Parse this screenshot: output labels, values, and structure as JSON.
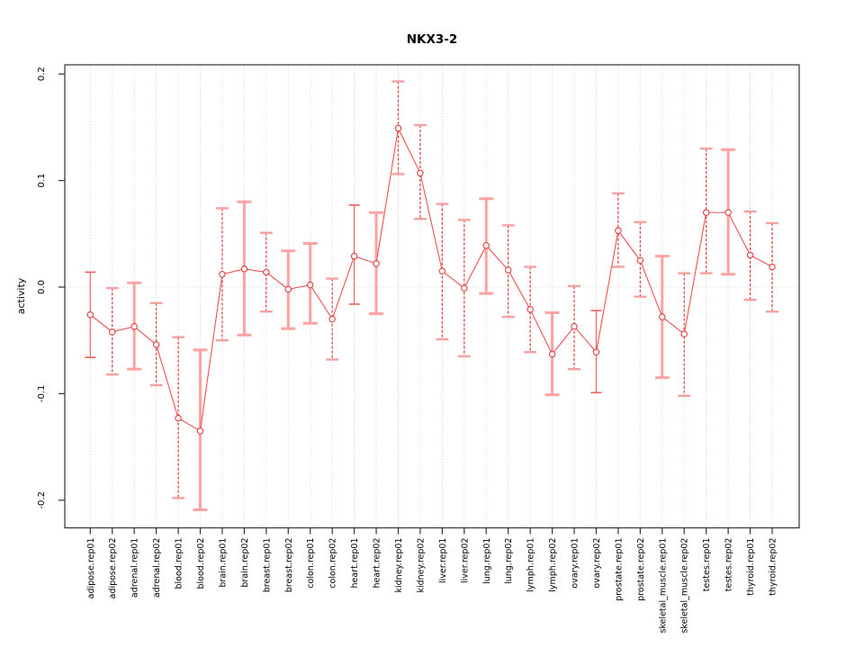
{
  "page": {
    "background": "#ffffff"
  },
  "chart_data": {
    "type": "line",
    "title": "NKX3-2",
    "xlabel": "",
    "ylabel": "activity",
    "ylim": [
      -0.226,
      0.209
    ],
    "yticks": [
      0.2,
      0.1,
      0.0,
      -0.1,
      -0.2
    ],
    "ytick_labels": [
      "0.2",
      "0.1",
      "0.0",
      "-0.1",
      "-0.2"
    ],
    "grid": "vertical dotted gridline at every category plus dotted horizontal line at 0.0",
    "legend": "none",
    "marker": "open-circle",
    "error_bars": true,
    "colors": {
      "line": "#f05050",
      "marker": "#e04040",
      "bar_solid": "#f26060",
      "bar_dashed": "#e03838",
      "bar_thick": "#ffa2a2",
      "bar_cap_light": "#f7a0a0",
      "grid": "#d8d8d8",
      "zero_line": "#dcdcdc",
      "box": "#333333",
      "text": "#000000"
    },
    "categories": [
      "adipose.rep01",
      "adipose.rep02",
      "adrenal.rep01",
      "adrenal.rep02",
      "blood.rep01",
      "blood.rep02",
      "brain.rep01",
      "brain.rep02",
      "breast.rep01",
      "breast.rep02",
      "colon.rep01",
      "colon.rep02",
      "heart.rep01",
      "heart.rep02",
      "kidney.rep01",
      "kidney.rep02",
      "liver.rep01",
      "liver.rep02",
      "lung.rep01",
      "lung.rep02",
      "lymph.rep01",
      "lymph.rep02",
      "ovary.rep01",
      "ovary.rep02",
      "prostate.rep01",
      "prostate.rep02",
      "skeletal_muscle.rep01",
      "skeletal_muscle.rep02",
      "testes.rep01",
      "testes.rep02",
      "thyroid.rep01",
      "thyroid.rep02"
    ],
    "series": [
      {
        "name": "activity",
        "points": [
          {
            "label": "adipose.rep01",
            "value": -0.026,
            "lo": -0.066,
            "hi": 0.014,
            "bar_style": "solid"
          },
          {
            "label": "adipose.rep02",
            "value": -0.042,
            "lo": -0.082,
            "hi": -0.001,
            "bar_style": "dashed"
          },
          {
            "label": "adrenal.rep01",
            "value": -0.037,
            "lo": -0.077,
            "hi": 0.004,
            "bar_style": "thick"
          },
          {
            "label": "adrenal.rep02",
            "value": -0.054,
            "lo": -0.092,
            "hi": -0.015,
            "bar_style": "dashed"
          },
          {
            "label": "blood.rep01",
            "value": -0.123,
            "lo": -0.198,
            "hi": -0.047,
            "bar_style": "dashed"
          },
          {
            "label": "blood.rep02",
            "value": -0.135,
            "lo": -0.209,
            "hi": -0.059,
            "bar_style": "thick"
          },
          {
            "label": "brain.rep01",
            "value": 0.012,
            "lo": -0.05,
            "hi": 0.074,
            "bar_style": "dashed"
          },
          {
            "label": "brain.rep02",
            "value": 0.017,
            "lo": -0.045,
            "hi": 0.08,
            "bar_style": "thick"
          },
          {
            "label": "breast.rep01",
            "value": 0.014,
            "lo": -0.023,
            "hi": 0.051,
            "bar_style": "dashed"
          },
          {
            "label": "breast.rep02",
            "value": -0.002,
            "lo": -0.039,
            "hi": 0.034,
            "bar_style": "thick"
          },
          {
            "label": "colon.rep01",
            "value": 0.002,
            "lo": -0.034,
            "hi": 0.041,
            "bar_style": "thick"
          },
          {
            "label": "colon.rep02",
            "value": -0.03,
            "lo": -0.068,
            "hi": 0.008,
            "bar_style": "dashed"
          },
          {
            "label": "heart.rep01",
            "value": 0.029,
            "lo": -0.016,
            "hi": 0.077,
            "bar_style": "solid"
          },
          {
            "label": "heart.rep02",
            "value": 0.022,
            "lo": -0.025,
            "hi": 0.07,
            "bar_style": "thick"
          },
          {
            "label": "kidney.rep01",
            "value": 0.149,
            "lo": 0.106,
            "hi": 0.193,
            "bar_style": "dashed"
          },
          {
            "label": "kidney.rep02",
            "value": 0.107,
            "lo": 0.064,
            "hi": 0.152,
            "bar_style": "dashed"
          },
          {
            "label": "liver.rep01",
            "value": 0.015,
            "lo": -0.049,
            "hi": 0.078,
            "bar_style": "dashed"
          },
          {
            "label": "liver.rep02",
            "value": -0.001,
            "lo": -0.065,
            "hi": 0.063,
            "bar_style": "dashed"
          },
          {
            "label": "lung.rep01",
            "value": 0.039,
            "lo": -0.006,
            "hi": 0.083,
            "bar_style": "thick"
          },
          {
            "label": "lung.rep02",
            "value": 0.016,
            "lo": -0.028,
            "hi": 0.058,
            "bar_style": "dashed"
          },
          {
            "label": "lymph.rep01",
            "value": -0.021,
            "lo": -0.061,
            "hi": 0.019,
            "bar_style": "dashed"
          },
          {
            "label": "lymph.rep02",
            "value": -0.063,
            "lo": -0.101,
            "hi": -0.024,
            "bar_style": "thick"
          },
          {
            "label": "ovary.rep01",
            "value": -0.037,
            "lo": -0.077,
            "hi": 0.001,
            "bar_style": "dashed"
          },
          {
            "label": "ovary.rep02",
            "value": -0.061,
            "lo": -0.099,
            "hi": -0.022,
            "bar_style": "solid"
          },
          {
            "label": "prostate.rep01",
            "value": 0.053,
            "lo": 0.019,
            "hi": 0.088,
            "bar_style": "dashed"
          },
          {
            "label": "prostate.rep02",
            "value": 0.025,
            "lo": -0.009,
            "hi": 0.061,
            "bar_style": "dashed"
          },
          {
            "label": "skeletal_muscle.rep01",
            "value": -0.028,
            "lo": -0.085,
            "hi": 0.029,
            "bar_style": "thick"
          },
          {
            "label": "skeletal_muscle.rep02",
            "value": -0.044,
            "lo": -0.102,
            "hi": 0.013,
            "bar_style": "dashed"
          },
          {
            "label": "testes.rep01",
            "value": 0.07,
            "lo": 0.013,
            "hi": 0.13,
            "bar_style": "dashed"
          },
          {
            "label": "testes.rep02",
            "value": 0.07,
            "lo": 0.012,
            "hi": 0.129,
            "bar_style": "thick"
          },
          {
            "label": "thyroid.rep01",
            "value": 0.03,
            "lo": -0.012,
            "hi": 0.071,
            "bar_style": "dashed"
          },
          {
            "label": "thyroid.rep02",
            "value": 0.019,
            "lo": -0.023,
            "hi": 0.06,
            "bar_style": "dashed"
          }
        ]
      }
    ]
  }
}
